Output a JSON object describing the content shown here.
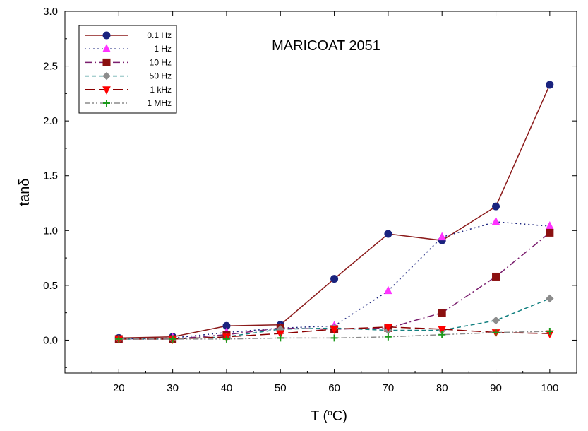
{
  "chart_data": {
    "type": "line",
    "title": "",
    "annotation": "MARICOAT 2051",
    "xlabel_parts": {
      "pre": "T (",
      "sup": "o",
      "post": "C)"
    },
    "ylabel": "tanδ",
    "xlim": [
      10,
      105
    ],
    "ylim": [
      -0.3,
      3.0
    ],
    "x_ticks": [
      20,
      30,
      40,
      50,
      60,
      70,
      80,
      90,
      100
    ],
    "x_tick_labels": [
      "20",
      "30",
      "40",
      "50",
      "60",
      "70",
      "80",
      "90",
      "100"
    ],
    "y_ticks": [
      0.0,
      0.5,
      1.0,
      1.5,
      2.0,
      2.5,
      3.0
    ],
    "y_tick_labels": [
      "0.0",
      "0.5",
      "1.0",
      "1.5",
      "2.0",
      "2.5",
      "3.0"
    ],
    "grid": false,
    "legend_position": "top-left",
    "x": [
      20,
      30,
      40,
      50,
      60,
      70,
      80,
      90,
      100
    ],
    "series": [
      {
        "name": "0.1 Hz",
        "values": [
          0.02,
          0.03,
          0.13,
          0.14,
          0.56,
          0.97,
          0.91,
          1.22,
          2.33
        ],
        "color": "#8b1a1a",
        "marker_color": "#1a237e",
        "marker": "circle",
        "dash": ""
      },
      {
        "name": "1 Hz",
        "values": [
          0.01,
          0.02,
          0.07,
          0.11,
          0.13,
          0.45,
          0.94,
          1.08,
          1.04
        ],
        "color": "#1a237e",
        "marker_color": "#ff33ff",
        "marker": "triangle-up",
        "dash": "2,4"
      },
      {
        "name": "10 Hz",
        "values": [
          0.01,
          0.01,
          0.05,
          0.11,
          0.1,
          0.11,
          0.25,
          0.58,
          0.98
        ],
        "color": "#7b1f6f",
        "marker_color": "#8b1010",
        "marker": "square",
        "dash": "10,4,2,4"
      },
      {
        "name": "50 Hz",
        "values": [
          0.01,
          0.01,
          0.03,
          0.1,
          0.11,
          0.09,
          0.09,
          0.18,
          0.38
        ],
        "color": "#138080",
        "marker_color": "#8c8c8c",
        "marker": "diamond",
        "dash": "6,4"
      },
      {
        "name": "1 kHz",
        "values": [
          0.01,
          0.01,
          0.03,
          0.06,
          0.1,
          0.12,
          0.1,
          0.07,
          0.06
        ],
        "color": "#8b0000",
        "marker_color": "#ff0000",
        "marker": "triangle-down",
        "dash": "14,6"
      },
      {
        "name": "1 MHz",
        "values": [
          0.01,
          0.01,
          0.01,
          0.02,
          0.02,
          0.03,
          0.05,
          0.07,
          0.08
        ],
        "color": "#8c8c8c",
        "marker_color": "#1c9a1c",
        "marker": "plus",
        "dash": "8,3,2,3,2,3"
      }
    ]
  }
}
